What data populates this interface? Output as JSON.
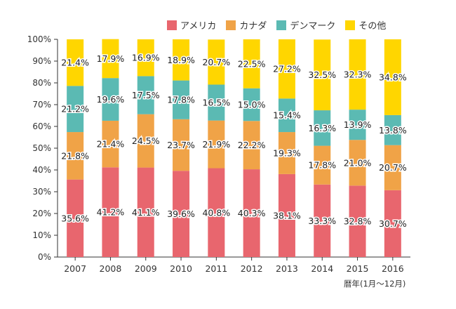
{
  "legend": {
    "items": [
      {
        "name": "アメリカ",
        "color": "#E8666E"
      },
      {
        "name": "カナダ",
        "color": "#F0A347"
      },
      {
        "name": "デンマーク",
        "color": "#5BBAB3"
      },
      {
        "name": "その他",
        "color": "#FFD600"
      }
    ]
  },
  "xnote": "暦年(1月～12月)",
  "chart_data": {
    "type": "bar",
    "stacked": true,
    "categories": [
      "2007",
      "2008",
      "2009",
      "2010",
      "2011",
      "2012",
      "2013",
      "2014",
      "2015",
      "2016"
    ],
    "series": [
      {
        "name": "アメリカ",
        "values": [
          35.6,
          41.2,
          41.1,
          39.6,
          40.8,
          40.3,
          38.1,
          33.3,
          32.8,
          30.7
        ],
        "labels": [
          "35.6%",
          "41.2%",
          "41.1%",
          "39.6%",
          "40.8%",
          "40.3%",
          "38.1%",
          "33.3%",
          "32.8%",
          "30.7%"
        ]
      },
      {
        "name": "カナダ",
        "values": [
          21.8,
          21.4,
          24.5,
          23.7,
          21.9,
          22.2,
          19.3,
          17.8,
          21.0,
          20.7
        ],
        "labels": [
          "21.8%",
          "21.4%",
          "24.5%",
          "23.7%",
          "21.9%",
          "22.2%",
          "19.3%",
          "17.8%",
          "21.0%",
          "20.7%"
        ]
      },
      {
        "name": "デンマーク",
        "values": [
          21.2,
          19.6,
          17.5,
          17.8,
          16.5,
          15.0,
          15.4,
          16.3,
          13.9,
          13.8
        ],
        "labels": [
          "21.2%",
          "19.6%",
          "17.5%",
          "17.8%",
          "16.5%",
          "15.0%",
          "15.4%",
          "16.3%",
          "13.9%",
          "13.8%"
        ]
      },
      {
        "name": "その他",
        "values": [
          21.4,
          17.9,
          16.9,
          18.9,
          20.7,
          22.5,
          27.2,
          32.5,
          32.3,
          34.8
        ],
        "labels": [
          "21.4%",
          "17.9%",
          "16.9%",
          "18.9%",
          "20.7%",
          "22.5%",
          "27.2%",
          "32.5%",
          "32.3%",
          "34.8%"
        ]
      }
    ],
    "yticks": [
      "0%",
      "10%",
      "20%",
      "30%",
      "40%",
      "50%",
      "60%",
      "70%",
      "80%",
      "90%",
      "100%"
    ],
    "ylim": [
      0,
      100
    ],
    "grid": false
  }
}
